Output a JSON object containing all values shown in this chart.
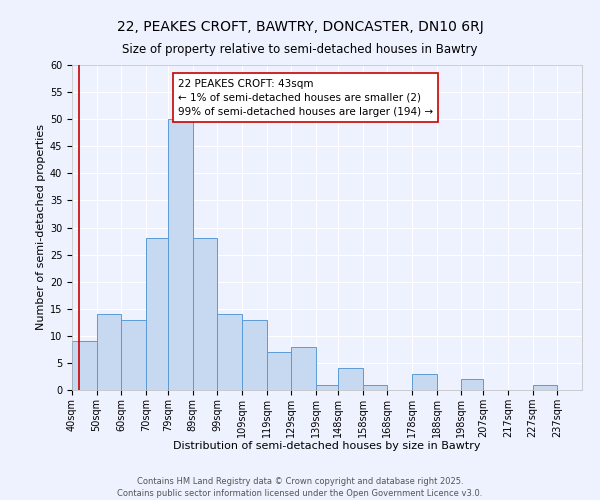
{
  "title": "22, PEAKES CROFT, BAWTRY, DONCASTER, DN10 6RJ",
  "subtitle": "Size of property relative to semi-detached houses in Bawtry",
  "xlabel": "Distribution of semi-detached houses by size in Bawtry",
  "ylabel": "Number of semi-detached properties",
  "bin_labels": [
    "40sqm",
    "50sqm",
    "60sqm",
    "70sqm",
    "79sqm",
    "89sqm",
    "99sqm",
    "109sqm",
    "119sqm",
    "129sqm",
    "139sqm",
    "148sqm",
    "158sqm",
    "168sqm",
    "178sqm",
    "188sqm",
    "198sqm",
    "207sqm",
    "217sqm",
    "227sqm",
    "237sqm"
  ],
  "bar_heights": [
    9,
    14,
    13,
    28,
    50,
    28,
    14,
    13,
    7,
    8,
    1,
    4,
    1,
    0,
    3,
    0,
    2,
    0,
    0,
    1,
    0
  ],
  "bar_color": "#c6d9f0",
  "bar_edge_color": "#5b9bd5",
  "highlight_line_color": "#cc0000",
  "annotation_title": "22 PEAKES CROFT: 43sqm",
  "annotation_line1": "← 1% of semi-detached houses are smaller (2)",
  "annotation_line2": "99% of semi-detached houses are larger (194) →",
  "annotation_box_edge_color": "#cc0000",
  "ylim": [
    0,
    60
  ],
  "yticks": [
    0,
    5,
    10,
    15,
    20,
    25,
    30,
    35,
    40,
    45,
    50,
    55,
    60
  ],
  "background_color": "#eef2ff",
  "grid_color": "#ffffff",
  "footer_line1": "Contains HM Land Registry data © Crown copyright and database right 2025.",
  "footer_line2": "Contains public sector information licensed under the Open Government Licence v3.0.",
  "title_fontsize": 10,
  "subtitle_fontsize": 8.5,
  "axis_label_fontsize": 8,
  "tick_fontsize": 7,
  "annotation_fontsize": 7.5,
  "footer_fontsize": 6
}
